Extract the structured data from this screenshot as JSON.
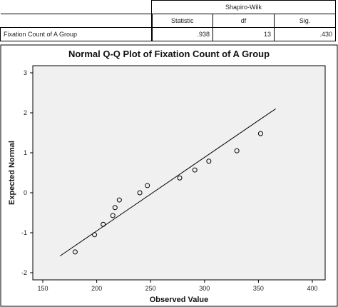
{
  "table": {
    "group_header": "Shapiro-Wilk",
    "columns": [
      "Statistic",
      "df",
      "Sig."
    ],
    "row": {
      "label": "Fixation Count of A Group",
      "values": [
        ".938",
        "13",
        ".430"
      ]
    }
  },
  "chart_data": {
    "type": "scatter",
    "title": "Normal Q-Q Plot of Fixation Count of A Group",
    "xlabel": "Observed Value",
    "ylabel": "Expected Normal",
    "xlim": [
      150,
      400
    ],
    "ylim": [
      -2,
      3
    ],
    "x_ticks": [
      150,
      200,
      250,
      300,
      350,
      400
    ],
    "y_ticks": [
      -2,
      -1,
      0,
      1,
      2,
      3
    ],
    "grid": false,
    "points": [
      {
        "x": 180,
        "y": -1.48
      },
      {
        "x": 198,
        "y": -1.05
      },
      {
        "x": 206,
        "y": -0.79
      },
      {
        "x": 215,
        "y": -0.57
      },
      {
        "x": 217,
        "y": -0.37
      },
      {
        "x": 221,
        "y": -0.18
      },
      {
        "x": 240,
        "y": 0.0
      },
      {
        "x": 247,
        "y": 0.18
      },
      {
        "x": 277,
        "y": 0.37
      },
      {
        "x": 291,
        "y": 0.57
      },
      {
        "x": 304,
        "y": 0.79
      },
      {
        "x": 330,
        "y": 1.05
      },
      {
        "x": 352,
        "y": 1.48
      }
    ],
    "reference_line": {
      "x": [
        166,
        366
      ],
      "y": [
        -1.58,
        2.1
      ]
    },
    "plot_bg": "#f0f0f0",
    "line_color": "#000000",
    "marker_color": "#000000"
  }
}
